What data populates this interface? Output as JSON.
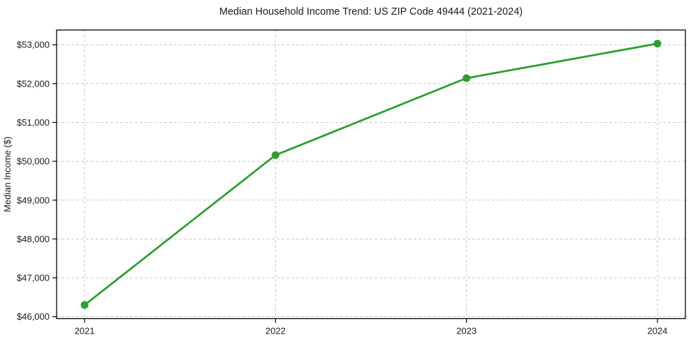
{
  "chart_data": {
    "type": "line",
    "title": "Median Household Income Trend: US ZIP Code 49444 (2021-2024)",
    "xlabel": "",
    "ylabel": "Median Income ($)",
    "x": [
      2021,
      2022,
      2023,
      2024
    ],
    "x_tick_labels": [
      "2021",
      "2022",
      "2023",
      "2024"
    ],
    "y_ticks": [
      46000,
      47000,
      48000,
      49000,
      50000,
      51000,
      52000,
      53000
    ],
    "y_tick_labels": [
      "$46,000",
      "$47,000",
      "$48,000",
      "$49,000",
      "$50,000",
      "$51,000",
      "$52,000",
      "$53,000"
    ],
    "series": [
      {
        "name": "Median Household Income",
        "values": [
          46300,
          50160,
          52140,
          53030
        ]
      }
    ],
    "xlim": [
      2020.8535,
      2024.1465
    ],
    "ylim": [
      45950,
      53380
    ],
    "grid": true,
    "grid_style": "dashed",
    "legend": "none",
    "marker": "circle",
    "colors": {
      "line": "#2ca02c",
      "marker": "#2ca02c",
      "grid": "#c9c9c9",
      "spine": "#000000",
      "title_text": "#000000",
      "tick_text": "#262626",
      "background": "#ffffff"
    }
  }
}
